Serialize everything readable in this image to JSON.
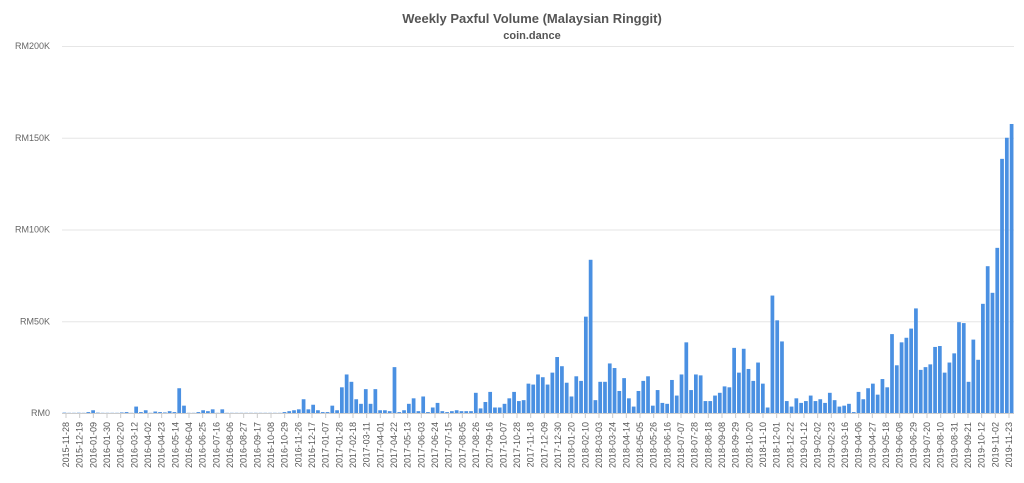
{
  "chart_data": {
    "type": "bar",
    "title": "Weekly Paxful Volume (Malaysian Ringgit)",
    "subtitle": "coin.dance",
    "xlabel": "",
    "ylabel": "",
    "ylim": [
      0,
      200000
    ],
    "yticks": [
      {
        "value": 0,
        "label": "RM0"
      },
      {
        "value": 50000,
        "label": "RM50K"
      },
      {
        "value": 100000,
        "label": "RM100K"
      },
      {
        "value": 150000,
        "label": "RM150K"
      },
      {
        "value": 200000,
        "label": "RM200K"
      }
    ],
    "grid": true,
    "legend": "none",
    "bar_color": "#4a90e2",
    "x_tick_labels": [
      "2015-11-28",
      "2015-12-19",
      "2016-01-09",
      "2016-01-30",
      "2016-02-20",
      "2016-03-12",
      "2016-04-02",
      "2016-04-23",
      "2016-05-14",
      "2016-06-04",
      "2016-06-25",
      "2016-07-16",
      "2016-08-06",
      "2016-08-27",
      "2016-09-17",
      "2016-10-08",
      "2016-10-29",
      "2016-11-26",
      "2016-12-17",
      "2017-01-07",
      "2017-01-28",
      "2017-02-18",
      "2017-03-11",
      "2017-04-01",
      "2017-04-22",
      "2017-05-13",
      "2017-06-03",
      "2017-06-24",
      "2017-07-15",
      "2017-08-05",
      "2017-08-26",
      "2017-09-16",
      "2017-10-07",
      "2017-10-28",
      "2017-11-18",
      "2017-12-09",
      "2017-12-30",
      "2018-01-20",
      "2018-02-10",
      "2018-03-03",
      "2018-03-24",
      "2018-04-14",
      "2018-05-05",
      "2018-05-26",
      "2018-06-16",
      "2018-07-07",
      "2018-07-28",
      "2018-08-18",
      "2018-09-08",
      "2018-09-29",
      "2018-10-20",
      "2018-11-10",
      "2018-12-01",
      "2018-12-22",
      "2019-01-12",
      "2019-02-02",
      "2019-02-23",
      "2019-03-16",
      "2019-04-06",
      "2019-04-27",
      "2019-05-18",
      "2019-06-08",
      "2019-06-29",
      "2019-07-20",
      "2019-08-10",
      "2019-08-31",
      "2019-09-21",
      "2019-10-12",
      "2019-11-02",
      "2019-11-23"
    ],
    "values": [
      200,
      100,
      100,
      150,
      100,
      500,
      1500,
      200,
      100,
      100,
      100,
      100,
      300,
      500,
      100,
      3500,
      500,
      1500,
      100,
      800,
      500,
      300,
      1000,
      500,
      13500,
      4000,
      100,
      100,
      500,
      1500,
      1000,
      2000,
      100,
      2000,
      100,
      100,
      100,
      100,
      100,
      100,
      100,
      100,
      100,
      100,
      100,
      100,
      500,
      1000,
      1500,
      2000,
      7500,
      2000,
      4500,
      1500,
      500,
      500,
      4000,
      1500,
      14000,
      21000,
      17000,
      7500,
      5000,
      13000,
      5000,
      13000,
      1500,
      1500,
      1000,
      25000,
      500,
      1500,
      5000,
      8000,
      1000,
      9000,
      500,
      3000,
      5500,
      1000,
      500,
      1000,
      1500,
      1000,
      1000,
      1000,
      11000,
      2500,
      6000,
      11500,
      3000,
      3000,
      5000,
      8000,
      11500,
      6500,
      7000,
      16000,
      15500,
      21000,
      19500,
      15500,
      22000,
      30500,
      25500,
      16500,
      9000,
      20000,
      17500,
      52500,
      83500,
      7000,
      17000,
      17000,
      27000,
      24500,
      12000,
      19000,
      8000,
      3500,
      12000,
      17500,
      20000,
      4000,
      12500,
      5500,
      5000,
      18000,
      9500,
      21000,
      38500,
      12500,
      21000,
      20500,
      6500,
      6500,
      9500,
      11000,
      14500,
      14000,
      35500,
      22000,
      35000,
      24000,
      17500,
      27500,
      16000,
      3000,
      64000,
      50500,
      39000,
      6500,
      3500,
      8000,
      5500,
      6500,
      9500,
      6500,
      7500,
      5500,
      11000,
      7000,
      3500,
      4000,
      5000,
      500,
      11500,
      7500,
      13500,
      16000,
      10000,
      18500,
      14000,
      43000,
      26000,
      38500,
      41000,
      46000,
      57000,
      23500,
      25000,
      26500,
      36000,
      36500,
      22000,
      27500,
      32500,
      49500,
      49000,
      17000,
      40000,
      29000,
      59500,
      80000,
      65500,
      90000,
      138500,
      150000,
      157500
    ]
  }
}
